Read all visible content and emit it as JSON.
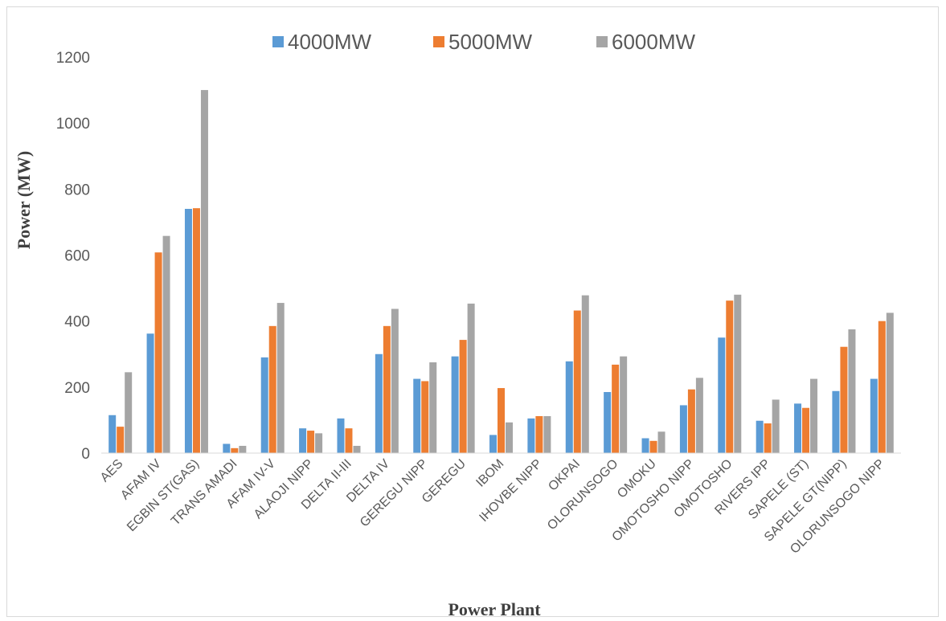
{
  "chart_data": {
    "type": "bar",
    "title": "",
    "xlabel": "Power Plant",
    "ylabel": "Power (MW)",
    "ylim": [
      0,
      1200
    ],
    "yticks": [
      0,
      200,
      400,
      600,
      800,
      1000,
      1200
    ],
    "grid": false,
    "legend_position": "top",
    "categories": [
      "AES",
      "AFAM IV",
      "EGBIN ST(GAS)",
      "TRANS AMADI",
      "AFAM IV-V",
      "ALAOJI NIPP",
      "DELTA II-III",
      "DELTA IV",
      "GEREGU NIPP",
      "GEREGU",
      "IBOM",
      "IHOVBE NIPP",
      "OKPAI",
      "OLORUNSOGO",
      "OMOKU",
      "OMOTOSHO NIPP",
      "OMOTOSHO",
      "RIVERS IPP",
      "SAPELE (ST)",
      "SAPELE GT(NIPP)",
      "OLORUNSOGO NIPP"
    ],
    "series": [
      {
        "name": "4000MW",
        "color": "#5b9bd5",
        "values": [
          115,
          362,
          740,
          28,
          290,
          75,
          105,
          300,
          225,
          293,
          55,
          105,
          278,
          185,
          45,
          145,
          350,
          98,
          150,
          188,
          225
        ]
      },
      {
        "name": "5000MW",
        "color": "#ed7d31",
        "values": [
          80,
          608,
          742,
          15,
          385,
          68,
          75,
          385,
          218,
          343,
          197,
          112,
          432,
          268,
          37,
          193,
          462,
          90,
          137,
          322,
          400
        ]
      },
      {
        "name": "6000MW",
        "color": "#a5a5a5",
        "values": [
          245,
          658,
          1100,
          22,
          455,
          60,
          22,
          437,
          275,
          453,
          93,
          112,
          478,
          293,
          65,
          228,
          480,
          162,
          225,
          375,
          425
        ]
      }
    ]
  }
}
